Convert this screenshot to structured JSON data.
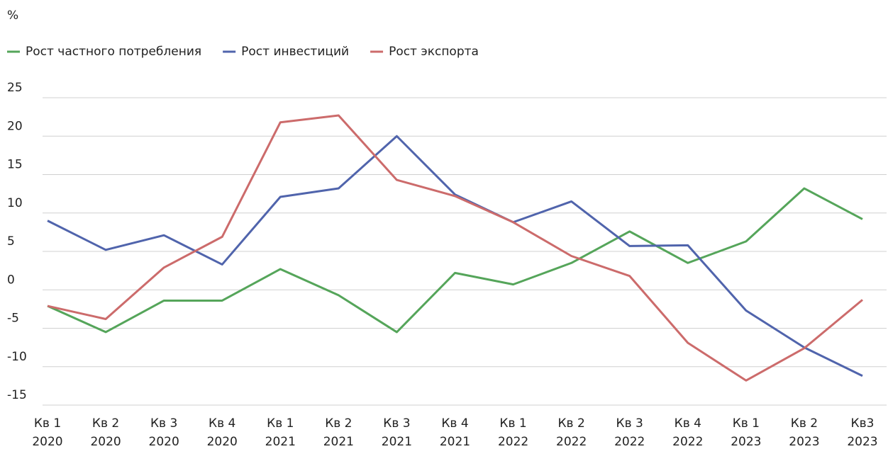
{
  "chart_data": {
    "type": "line",
    "y_label": "%",
    "categories": [
      [
        "Кв 1",
        "2020"
      ],
      [
        "Кв 2",
        "2020"
      ],
      [
        "Кв 3",
        "2020"
      ],
      [
        "Кв 4",
        "2020"
      ],
      [
        "Кв 1",
        "2021"
      ],
      [
        "Кв 2",
        "2021"
      ],
      [
        "Кв 3",
        "2021"
      ],
      [
        "Кв 4",
        "2021"
      ],
      [
        "Кв 1",
        "2022"
      ],
      [
        "Кв 2",
        "2022"
      ],
      [
        "Кв 3",
        "2022"
      ],
      [
        "Кв 4",
        "2022"
      ],
      [
        "Кв 1",
        "2023"
      ],
      [
        "Кв 2",
        "2023"
      ],
      [
        "Кв3",
        "2023"
      ]
    ],
    "series": [
      {
        "name": "Рост частного потребления",
        "color": "#55a55a",
        "values": [
          -2.1,
          -5.5,
          -1.4,
          -1.4,
          2.7,
          -0.7,
          -5.5,
          2.2,
          0.7,
          3.5,
          7.6,
          3.5,
          6.3,
          13.2,
          9.2
        ]
      },
      {
        "name": "Рост инвестиций",
        "color": "#5064ac",
        "values": [
          9.0,
          5.2,
          7.1,
          3.3,
          12.1,
          13.2,
          20.0,
          12.4,
          8.8,
          11.5,
          5.7,
          5.8,
          -2.7,
          -7.5,
          -11.2
        ]
      },
      {
        "name": "Рост экспорта",
        "color": "#cc6b6b",
        "values": [
          -2.1,
          -3.8,
          2.9,
          6.9,
          21.8,
          22.7,
          14.3,
          12.2,
          8.8,
          4.4,
          1.8,
          -6.9,
          -11.8,
          -7.6,
          -1.3
        ]
      }
    ],
    "ylim": [
      -15,
      25
    ],
    "yticks": [
      -15,
      -10,
      -5,
      0,
      5,
      10,
      15,
      20,
      25
    ],
    "grid": true,
    "legend": "top"
  }
}
